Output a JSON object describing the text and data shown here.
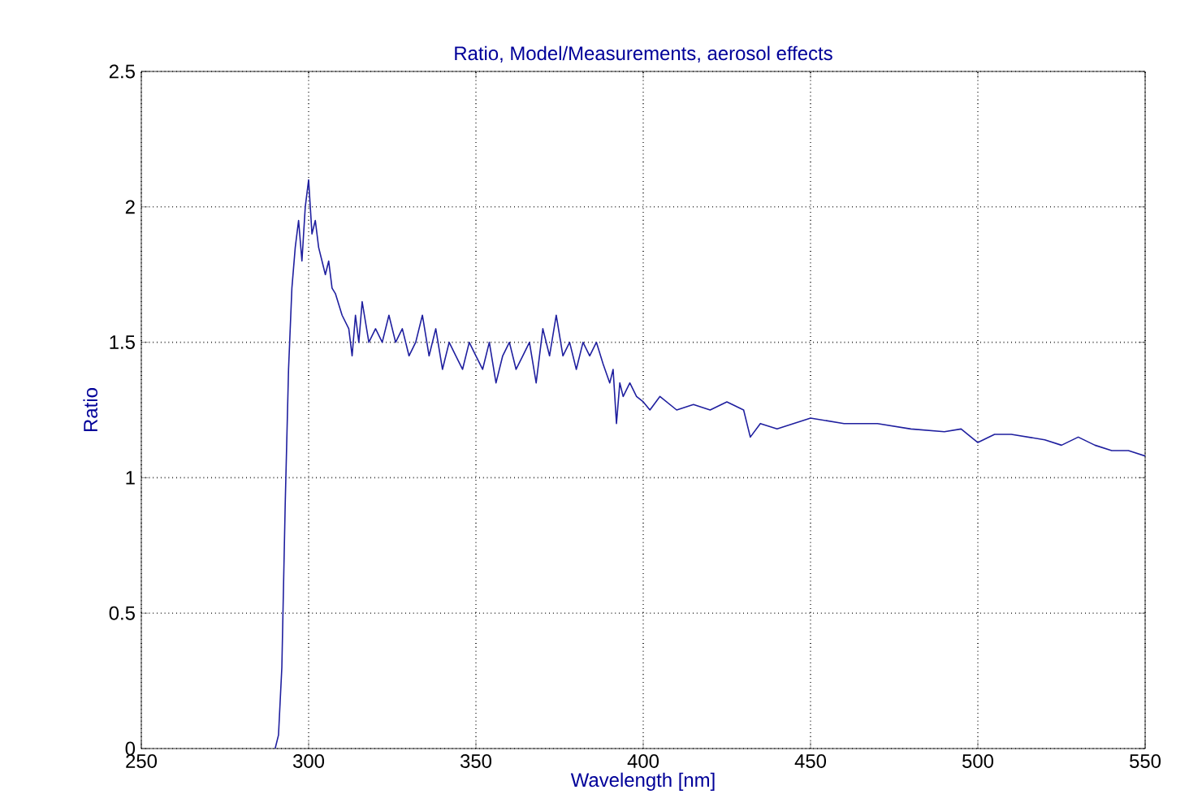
{
  "chart_data": {
    "type": "line",
    "title": "Ratio, Model/Measurements, aerosol effects",
    "xlabel": "Wavelength [nm]",
    "ylabel": "Ratio",
    "xlim": [
      250,
      550
    ],
    "ylim": [
      0,
      2.5
    ],
    "xticks": [
      250,
      300,
      350,
      400,
      450,
      500,
      550
    ],
    "yticks": [
      0,
      0.5,
      1,
      1.5,
      2,
      2.5
    ],
    "grid": true,
    "line_style": "solid",
    "marker": "none",
    "series": [
      {
        "color": "#1f1f9f",
        "x": [
          290,
          291,
          292,
          293,
          294,
          295,
          296,
          297,
          298,
          299,
          300,
          301,
          302,
          303,
          304,
          305,
          306,
          307,
          308,
          310,
          312,
          313,
          314,
          315,
          316,
          318,
          320,
          322,
          324,
          326,
          328,
          330,
          332,
          334,
          336,
          338,
          340,
          342,
          344,
          346,
          348,
          350,
          352,
          354,
          356,
          358,
          360,
          362,
          364,
          366,
          368,
          370,
          372,
          374,
          376,
          378,
          380,
          382,
          384,
          386,
          388,
          390,
          391,
          392,
          393,
          394,
          396,
          398,
          400,
          402,
          405,
          410,
          415,
          420,
          425,
          430,
          432,
          435,
          440,
          445,
          450,
          460,
          470,
          480,
          490,
          495,
          500,
          505,
          510,
          520,
          525,
          530,
          535,
          540,
          545,
          550
        ],
        "values": [
          0,
          0.05,
          0.3,
          0.9,
          1.4,
          1.7,
          1.85,
          1.95,
          1.8,
          2.0,
          2.1,
          1.9,
          1.95,
          1.85,
          1.8,
          1.75,
          1.8,
          1.7,
          1.68,
          1.6,
          1.55,
          1.45,
          1.6,
          1.5,
          1.65,
          1.5,
          1.55,
          1.5,
          1.6,
          1.5,
          1.55,
          1.45,
          1.5,
          1.6,
          1.45,
          1.55,
          1.4,
          1.5,
          1.45,
          1.4,
          1.5,
          1.45,
          1.4,
          1.5,
          1.35,
          1.45,
          1.5,
          1.4,
          1.45,
          1.5,
          1.35,
          1.55,
          1.45,
          1.6,
          1.45,
          1.5,
          1.4,
          1.5,
          1.45,
          1.5,
          1.42,
          1.35,
          1.4,
          1.2,
          1.35,
          1.3,
          1.35,
          1.3,
          1.28,
          1.25,
          1.3,
          1.25,
          1.27,
          1.25,
          1.28,
          1.25,
          1.15,
          1.2,
          1.18,
          1.2,
          1.22,
          1.2,
          1.2,
          1.18,
          1.17,
          1.18,
          1.13,
          1.16,
          1.16,
          1.14,
          1.12,
          1.15,
          1.12,
          1.1,
          1.1,
          1.08
        ]
      }
    ]
  }
}
